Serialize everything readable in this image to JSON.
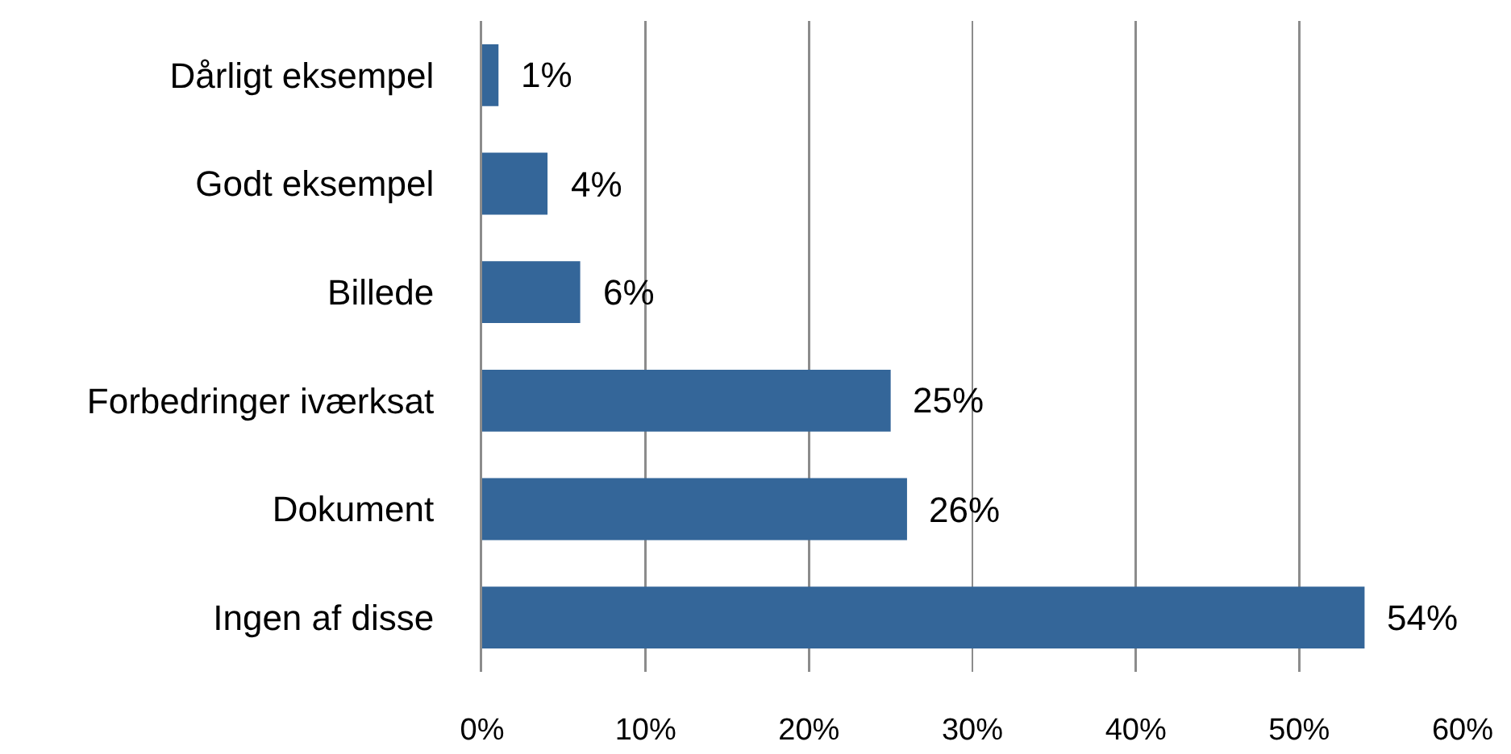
{
  "chart_data": {
    "type": "bar",
    "orientation": "horizontal",
    "categories": [
      "Dårligt eksempel",
      "Godt eksempel",
      "Billede",
      "Forbedringer iværksat",
      "Dokument",
      "Ingen af disse"
    ],
    "values": [
      1,
      4,
      6,
      25,
      26,
      54
    ],
    "color": "#346699",
    "value_labels": [
      "1%",
      "4%",
      "6%",
      "25%",
      "26%",
      "54%"
    ],
    "xlim": [
      0,
      60
    ],
    "xticks": [
      {
        "value": 0,
        "label": "0%"
      },
      {
        "value": 10,
        "label": "10%"
      },
      {
        "value": 20,
        "label": "20%"
      },
      {
        "value": 30,
        "label": "30%"
      },
      {
        "value": 40,
        "label": "40%"
      },
      {
        "value": 50,
        "label": "50%"
      },
      {
        "value": 60,
        "label": "60%"
      }
    ],
    "grid": "x"
  }
}
